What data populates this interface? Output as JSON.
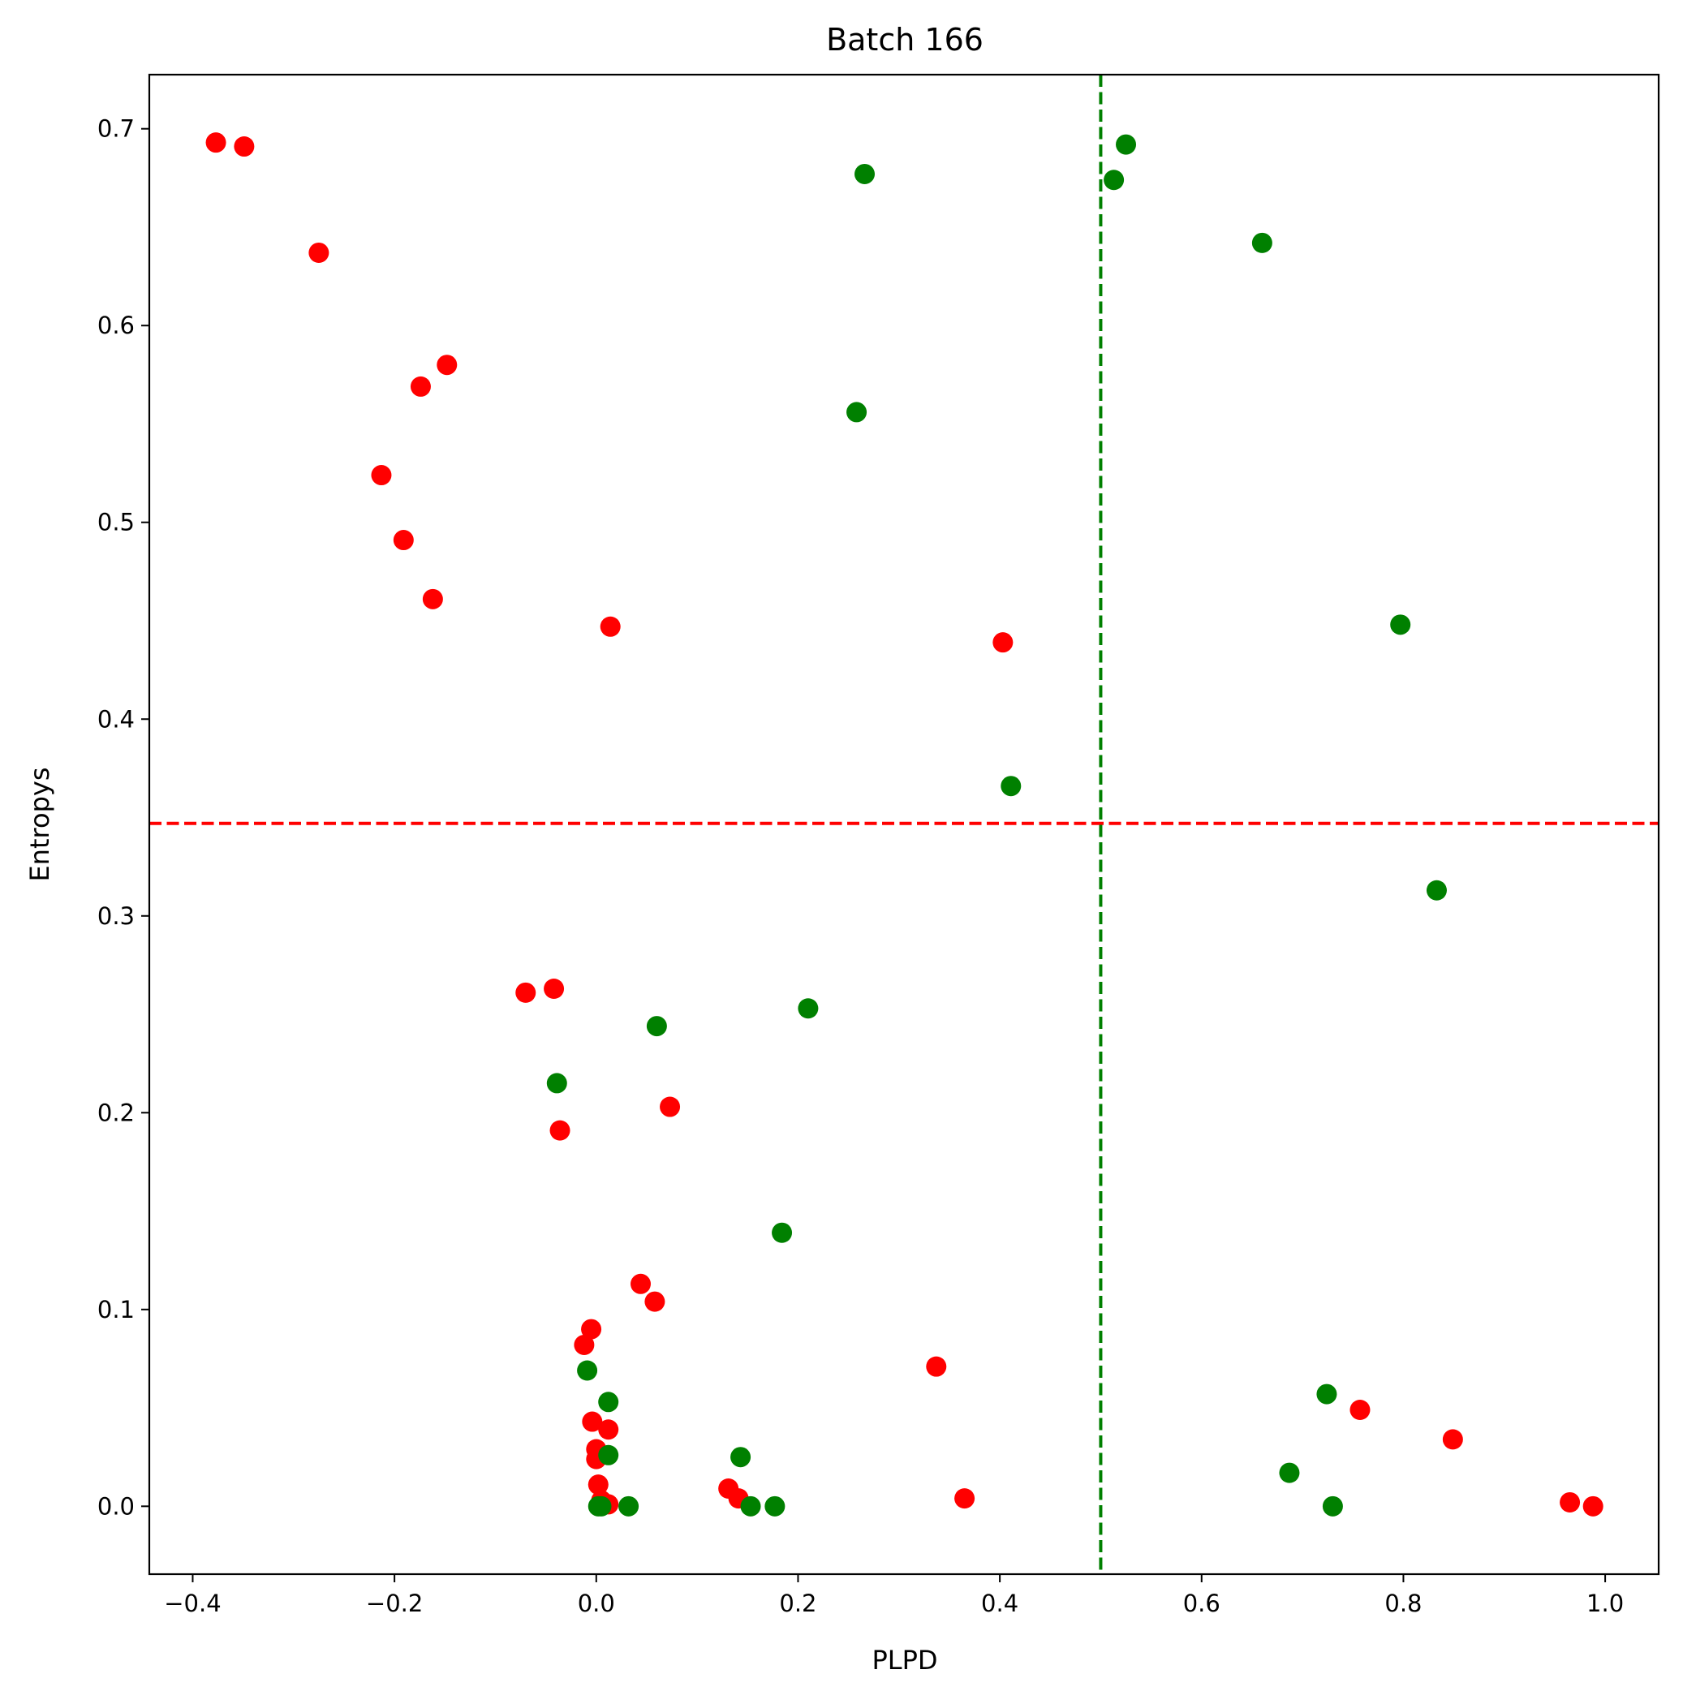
{
  "chart_data": {
    "type": "scatter",
    "title": "Batch 166",
    "xlabel": "PLPD",
    "ylabel": "Entropys",
    "xlim": [
      -0.443,
      1.053
    ],
    "ylim": [
      -0.0345,
      0.7275
    ],
    "xticks": [
      -0.4,
      -0.2,
      0.0,
      0.2,
      0.4,
      0.6,
      0.8,
      1.0
    ],
    "xtick_labels": [
      "−0.4",
      "−0.2",
      "0.0",
      "0.2",
      "0.4",
      "0.6",
      "0.8",
      "1.0"
    ],
    "yticks": [
      0.0,
      0.1,
      0.2,
      0.3,
      0.4,
      0.5,
      0.6,
      0.7
    ],
    "ytick_labels": [
      "0.0",
      "0.1",
      "0.2",
      "0.3",
      "0.4",
      "0.5",
      "0.6",
      "0.7"
    ],
    "grid": false,
    "reference_lines": [
      {
        "orientation": "horizontal",
        "value": 0.347,
        "color": "#ff0000",
        "style": "dashed"
      },
      {
        "orientation": "vertical",
        "value": 0.5,
        "color": "#008000",
        "style": "dashed"
      }
    ],
    "series": [
      {
        "color": "#ff0000",
        "points": [
          [
            -0.377,
            0.693
          ],
          [
            -0.349,
            0.691
          ],
          [
            -0.275,
            0.637
          ],
          [
            -0.148,
            0.58
          ],
          [
            -0.174,
            0.569
          ],
          [
            -0.213,
            0.524
          ],
          [
            -0.191,
            0.491
          ],
          [
            -0.162,
            0.461
          ],
          [
            0.014,
            0.447
          ],
          [
            0.403,
            0.439
          ],
          [
            -0.07,
            0.261
          ],
          [
            -0.042,
            0.263
          ],
          [
            0.073,
            0.203
          ],
          [
            -0.036,
            0.191
          ],
          [
            0.044,
            0.113
          ],
          [
            0.058,
            0.104
          ],
          [
            -0.005,
            0.09
          ],
          [
            -0.012,
            0.082
          ],
          [
            0.337,
            0.071
          ],
          [
            -0.004,
            0.043
          ],
          [
            0.012,
            0.039
          ],
          [
            0.0,
            0.029
          ],
          [
            0.0,
            0.024
          ],
          [
            0.002,
            0.011
          ],
          [
            0.005,
            0.003
          ],
          [
            0.012,
            0.001
          ],
          [
            0.131,
            0.009
          ],
          [
            0.141,
            0.004
          ],
          [
            0.365,
            0.004
          ],
          [
            0.757,
            0.049
          ],
          [
            0.849,
            0.034
          ],
          [
            0.965,
            0.002
          ],
          [
            0.988,
            0.0
          ]
        ]
      },
      {
        "color": "#008000",
        "points": [
          [
            0.266,
            0.677
          ],
          [
            0.525,
            0.692
          ],
          [
            0.513,
            0.674
          ],
          [
            0.66,
            0.642
          ],
          [
            0.258,
            0.556
          ],
          [
            0.797,
            0.448
          ],
          [
            0.411,
            0.366
          ],
          [
            0.833,
            0.313
          ],
          [
            0.06,
            0.244
          ],
          [
            0.21,
            0.253
          ],
          [
            -0.039,
            0.215
          ],
          [
            0.184,
            0.139
          ],
          [
            -0.009,
            0.069
          ],
          [
            0.012,
            0.053
          ],
          [
            0.724,
            0.057
          ],
          [
            0.012,
            0.026
          ],
          [
            0.143,
            0.025
          ],
          [
            0.687,
            0.017
          ],
          [
            0.002,
            0.0
          ],
          [
            0.005,
            0.0
          ],
          [
            0.032,
            0.0
          ],
          [
            0.153,
            0.0
          ],
          [
            0.177,
            0.0
          ],
          [
            0.73,
            0.0
          ]
        ]
      }
    ]
  }
}
